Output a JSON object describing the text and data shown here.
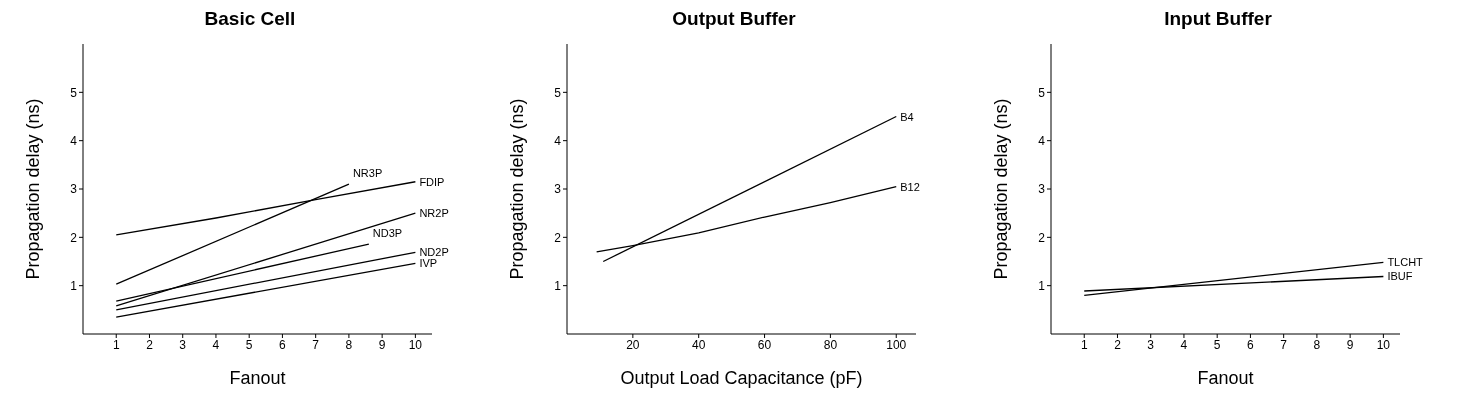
{
  "chart_data": [
    {
      "type": "line",
      "title": "Basic Cell",
      "xlabel": "Fanout",
      "ylabel": "Propagation delay (ns)",
      "xlim": [
        0,
        10.5
      ],
      "xticks": [
        1,
        2,
        3,
        4,
        5,
        6,
        7,
        8,
        9,
        10
      ],
      "ylim": [
        0,
        6
      ],
      "yticks": [
        1,
        2,
        3,
        4,
        5
      ],
      "series": [
        {
          "name": "NR3P",
          "color": "#000000",
          "x": [
            1,
            8
          ],
          "values": [
            1.03,
            3.1
          ]
        },
        {
          "name": "FDIP",
          "color": "#000000",
          "x": [
            1,
            4,
            7,
            10
          ],
          "values": [
            2.05,
            2.4,
            2.78,
            3.15
          ]
        },
        {
          "name": "NR2P",
          "color": "#000000",
          "x": [
            1,
            10
          ],
          "values": [
            0.58,
            2.5
          ]
        },
        {
          "name": "ND3P",
          "color": "#000000",
          "x": [
            1,
            8.6
          ],
          "values": [
            0.68,
            1.86
          ]
        },
        {
          "name": "ND2P",
          "color": "#000000",
          "x": [
            1,
            10
          ],
          "values": [
            0.5,
            1.69
          ]
        },
        {
          "name": "IVP",
          "color": "#000000",
          "x": [
            1,
            10
          ],
          "values": [
            0.35,
            1.46
          ]
        }
      ]
    },
    {
      "type": "line",
      "title": "Output Buffer",
      "xlabel": "Output Load Capacitance (pF)",
      "ylabel": "Propagation delay (ns)",
      "xlim": [
        0,
        106
      ],
      "xticks": [
        20,
        40,
        60,
        80,
        100
      ],
      "ylim": [
        0,
        6
      ],
      "yticks": [
        1,
        2,
        3,
        4,
        5
      ],
      "series": [
        {
          "name": "B4",
          "color": "#000000",
          "x": [
            11,
            100
          ],
          "values": [
            1.5,
            4.5
          ]
        },
        {
          "name": "B12",
          "color": "#000000",
          "x": [
            9,
            20,
            40,
            60,
            80,
            100
          ],
          "values": [
            1.7,
            1.83,
            2.09,
            2.42,
            2.72,
            3.05
          ]
        }
      ]
    },
    {
      "type": "line",
      "title": "Input Buffer",
      "xlabel": "Fanout",
      "ylabel": "Propagation delay (ns)",
      "xlim": [
        0,
        10.5
      ],
      "xticks": [
        1,
        2,
        3,
        4,
        5,
        6,
        7,
        8,
        9,
        10
      ],
      "ylim": [
        0,
        6
      ],
      "yticks": [
        1,
        2,
        3,
        4,
        5
      ],
      "series": [
        {
          "name": "TLCHT",
          "color": "#000000",
          "x": [
            1,
            10
          ],
          "values": [
            0.8,
            1.48
          ]
        },
        {
          "name": "IBUF",
          "color": "#000000",
          "x": [
            1,
            10
          ],
          "values": [
            0.89,
            1.19
          ]
        }
      ]
    }
  ]
}
